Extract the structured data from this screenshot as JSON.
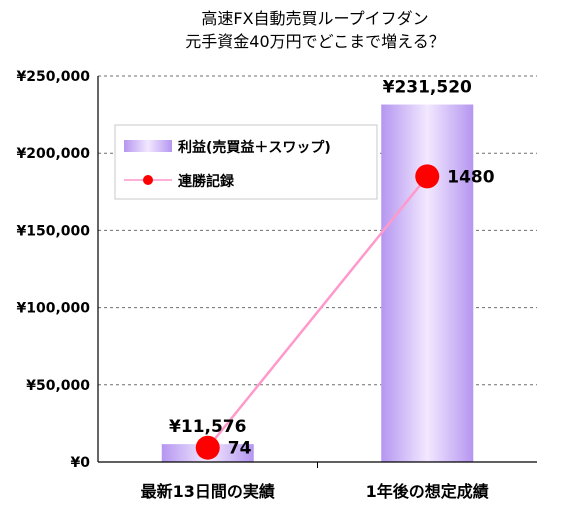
{
  "chart_data": {
    "type": "bar",
    "title": [
      "高速FX自動売買ループイフダン",
      "元手資金40万円でどこまで増える？"
    ],
    "categories": [
      "最新13日間の実績",
      "1年後の想定成績"
    ],
    "ylim": [
      0,
      250000
    ],
    "yticks": [
      {
        "value": 0,
        "label": "¥0"
      },
      {
        "value": 50000,
        "label": "¥50,000"
      },
      {
        "value": 100000,
        "label": "¥100,000"
      },
      {
        "value": 150000,
        "label": "¥150,000"
      },
      {
        "value": 200000,
        "label": "¥200,000"
      },
      {
        "value": 250000,
        "label": "¥250,000"
      }
    ],
    "grid": true,
    "legend_position": "upper-left",
    "series": [
      {
        "name": "利益(売買益＋スワップ)",
        "kind": "bar",
        "values": [
          11576,
          231520
        ],
        "data_labels": [
          "¥11,576",
          "¥231,520"
        ],
        "color": "#c8a8f5"
      },
      {
        "name": "連勝記録",
        "kind": "line",
        "values": [
          74,
          1480
        ],
        "data_labels": [
          "74",
          "1480"
        ],
        "color": "#ff0000",
        "line_color": "#ff99cc"
      }
    ]
  }
}
